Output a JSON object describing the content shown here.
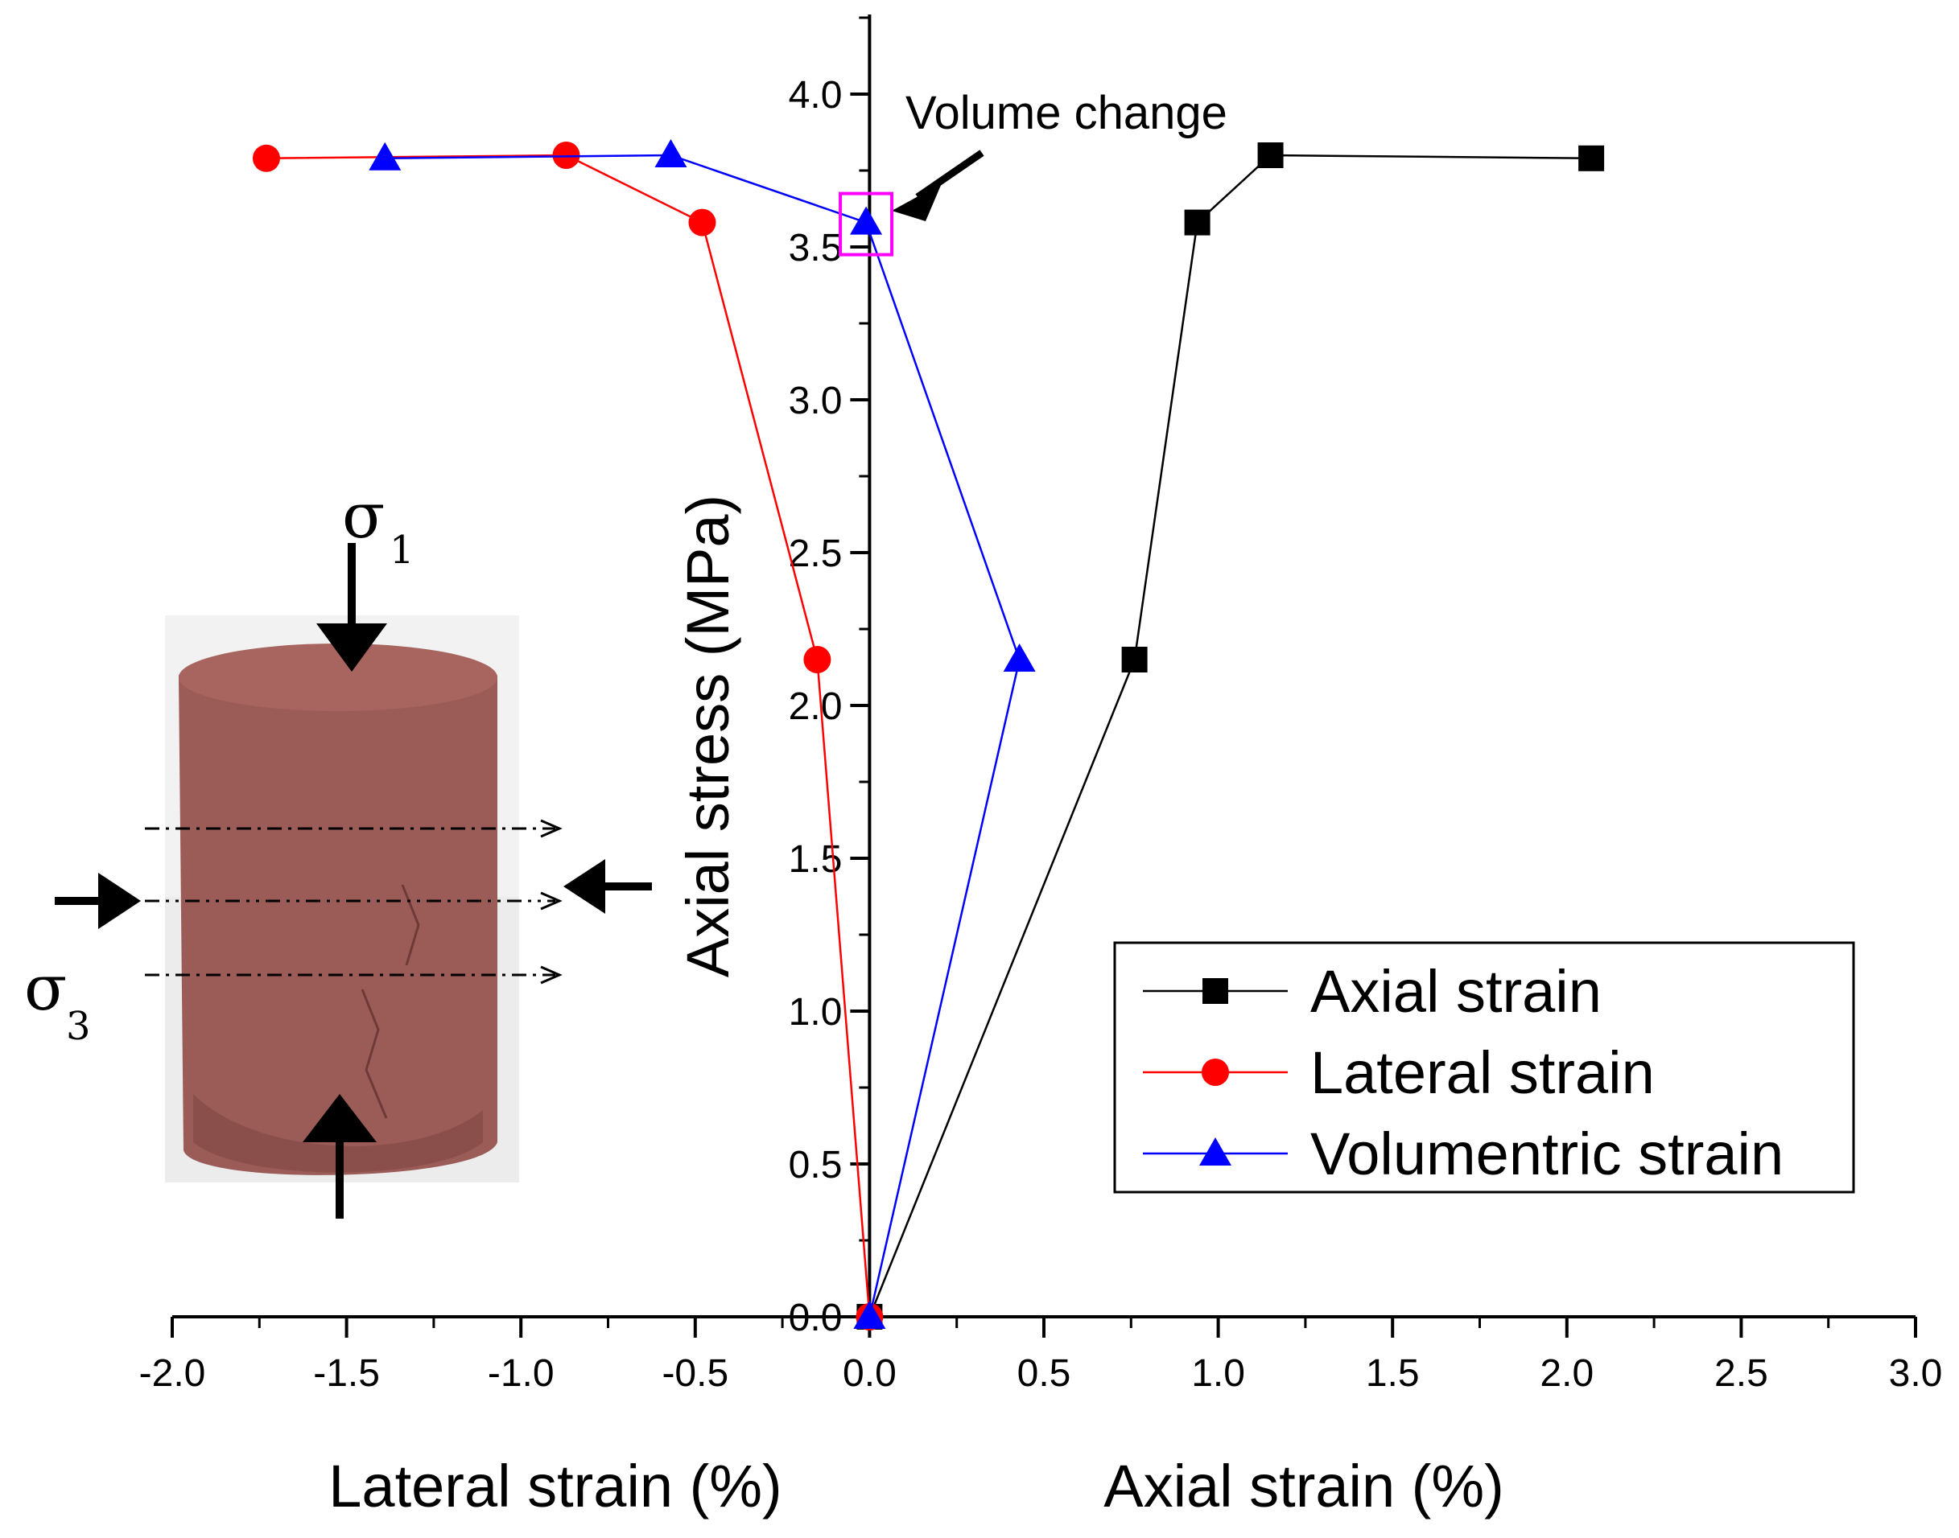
{
  "chart_data": {
    "type": "line",
    "xlabel_left": "Lateral strain (%)",
    "xlabel_right": "Axial strain (%)",
    "ylabel": "Axial stress (MPa)",
    "xlim": [
      -2.0,
      3.0
    ],
    "ylim": [
      0.0,
      4.3
    ],
    "x_ticks": [
      -2.0,
      -1.5,
      -1.0,
      -0.5,
      0.0,
      0.5,
      1.0,
      1.5,
      2.0,
      2.5,
      3.0
    ],
    "x_tick_labels": [
      "-2.0",
      "-1.5",
      "-1.0",
      "-0.5",
      "0.0",
      "0.5",
      "1.0",
      "1.5",
      "2.0",
      "2.5",
      "3.0"
    ],
    "y_ticks": [
      0.0,
      0.5,
      1.0,
      1.5,
      2.0,
      2.5,
      3.0,
      3.5,
      4.0
    ],
    "y_tick_labels": [
      "0.0",
      "0.5",
      "1.0",
      "1.5",
      "2.0",
      "2.5",
      "3.0",
      "3.5",
      "4.0"
    ],
    "series": [
      {
        "name": "Axial strain",
        "color": "#000000",
        "marker": "square",
        "x": [
          0.0,
          0.76,
          0.94,
          1.15,
          2.07
        ],
        "y": [
          0.0,
          2.15,
          3.58,
          3.8,
          3.79
        ]
      },
      {
        "name": "Lateral strain",
        "color": "#ff0000",
        "marker": "circle",
        "x": [
          0.0,
          -0.15,
          -0.48,
          -0.87,
          -1.73
        ],
        "y": [
          0.0,
          2.15,
          3.58,
          3.8,
          3.79
        ]
      },
      {
        "name": "Volumentric strain",
        "color": "#0000ff",
        "marker": "triangle",
        "x": [
          0.0,
          0.43,
          -0.01,
          -0.57,
          -1.39
        ],
        "y": [
          0.0,
          2.15,
          3.58,
          3.8,
          3.79
        ]
      }
    ],
    "legend": {
      "position": "bottom-right",
      "entries": [
        "Axial strain",
        "Lateral strain",
        "Volumentric strain"
      ]
    },
    "annotation": {
      "text": "Volume change",
      "target_x": -0.01,
      "target_y": 3.58,
      "box_color": "#ff00ff"
    },
    "inset": {
      "description_labels": {
        "sigma1": "σ",
        "sigma1_sub": "1",
        "sigma3": "σ",
        "sigma3_sub": "3"
      },
      "sample_color": "#9a5a56",
      "background_color": "#e8e8e8"
    }
  }
}
